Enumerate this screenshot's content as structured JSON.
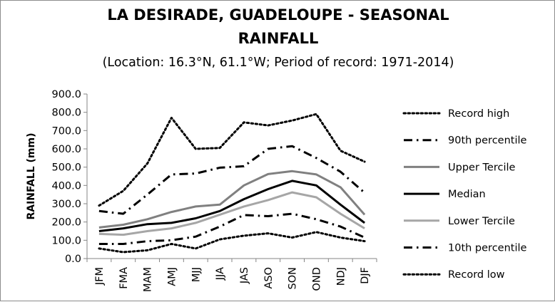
{
  "chart_data": {
    "type": "line",
    "title_line1": "LA DESIRADE, GUADELOUPE - SEASONAL",
    "title_line2": "RAINFALL",
    "subtitle": "(Location: 16.3°N, 61.1°W; Period of record: 1971-2014)",
    "ylabel": "RAINFALL (mm)",
    "xlabel": "",
    "ylim": [
      0,
      900
    ],
    "yticks": [
      "0.0",
      "100.0",
      "200.0",
      "300.0",
      "400.0",
      "500.0",
      "600.0",
      "700.0",
      "800.0",
      "900.0"
    ],
    "categories": [
      "JFM",
      "FMA",
      "MAM",
      "AMJ",
      "MJJ",
      "JJA",
      "JAS",
      "ASO",
      "SON",
      "OND",
      "NDJ",
      "DJF"
    ],
    "grid": false,
    "legend_position": "right",
    "series": [
      {
        "name": "Record high",
        "style": "dotted",
        "color": "#000000",
        "values": [
          290,
          370,
          520,
          770,
          600,
          605,
          745,
          728,
          755,
          790,
          590,
          530
        ]
      },
      {
        "name": "90th percentile",
        "style": "dashdot",
        "color": "#000000",
        "values": [
          260,
          245,
          350,
          460,
          465,
          497,
          505,
          600,
          615,
          550,
          475,
          360
        ]
      },
      {
        "name": "Upper Tercile",
        "style": "solid",
        "color": "#808080",
        "values": [
          170,
          185,
          215,
          255,
          285,
          295,
          400,
          462,
          478,
          460,
          390,
          240
        ]
      },
      {
        "name": "Median",
        "style": "solid",
        "color": "#000000",
        "values": [
          150,
          165,
          188,
          195,
          220,
          260,
          325,
          380,
          425,
          400,
          295,
          195
        ]
      },
      {
        "name": "Lower Tercile",
        "style": "solid",
        "color": "#a6a6a6",
        "values": [
          135,
          130,
          150,
          165,
          195,
          240,
          285,
          320,
          362,
          335,
          245,
          165
        ]
      },
      {
        "name": "10th percentile",
        "style": "dashdot",
        "color": "#000000",
        "values": [
          80,
          80,
          95,
          100,
          120,
          175,
          238,
          232,
          245,
          215,
          175,
          115
        ]
      },
      {
        "name": "Record low",
        "style": "dotted",
        "color": "#000000",
        "values": [
          55,
          35,
          45,
          80,
          55,
          105,
          125,
          138,
          115,
          145,
          115,
          95
        ]
      }
    ]
  }
}
